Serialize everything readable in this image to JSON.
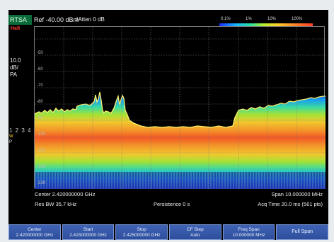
{
  "header": {
    "mode": "RTSA",
    "status": "Halt",
    "ref": "Ref -40.00 dBm",
    "atten": "#Atten 0 dB"
  },
  "legend": {
    "labels": [
      "0.1%",
      "1%",
      "10%",
      "100%"
    ]
  },
  "left_panel": {
    "scale_value": "10.0",
    "scale_unit": "dB/",
    "scale_type": "PA",
    "trace_numbers": "1 2 3 4",
    "trace_w": "W",
    "trace_p": "P"
  },
  "plot": {
    "y_ticks": [
      "-50",
      "-60",
      "-70",
      "-80",
      "-90",
      "-100",
      "-110",
      "-120",
      "-130"
    ]
  },
  "footer": {
    "center": "Center 2.420000000 GHz",
    "span": "Span 10.000000 MHz",
    "res_bw": "Res BW 35.7 kHz",
    "persistence": "Persistence 0  s",
    "acq_time": "Acq Time 20.0 ms (561 pts)"
  },
  "softkeys": [
    {
      "label": "Center",
      "value": "2.420000000 GHz"
    },
    {
      "label": "Start",
      "value": "2.415000000 GHz"
    },
    {
      "label": "Stop",
      "value": "2.425000000 GHz"
    },
    {
      "label": "CF Step",
      "value": "Auto"
    },
    {
      "label": "Freq Span",
      "value": "10.000000 MHz"
    },
    {
      "label": "Full Span",
      "value": ""
    }
  ],
  "colors": {
    "background": "#000000",
    "graticule": "#707070",
    "trace": "#fff36b",
    "softkey": "#3553a3"
  }
}
